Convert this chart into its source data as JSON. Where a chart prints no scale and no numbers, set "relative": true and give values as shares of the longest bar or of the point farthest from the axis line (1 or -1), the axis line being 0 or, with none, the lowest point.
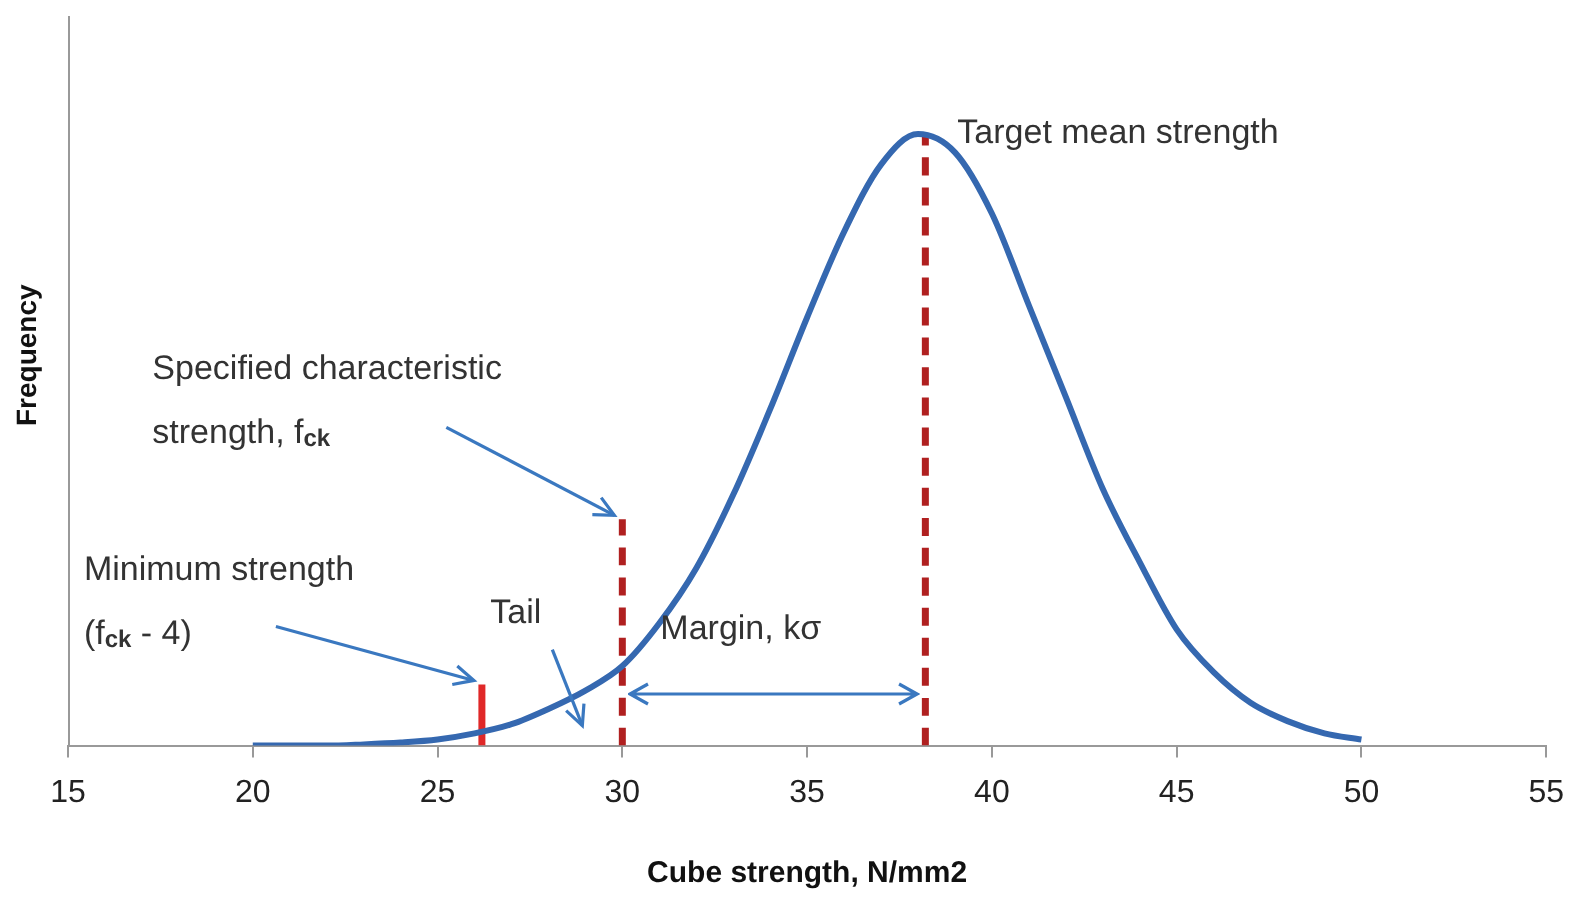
{
  "chart_data": {
    "type": "line",
    "relative": true,
    "xlabel": "Cube strength, N/mm2",
    "ylabel": "Frequency",
    "xlim": [
      15,
      55
    ],
    "xticks": [
      15,
      20,
      25,
      30,
      35,
      40,
      45,
      50,
      55
    ],
    "grid": false,
    "legend": false,
    "marker": "none",
    "series": [
      {
        "color": "#3568b0",
        "line_style": "solid",
        "x": [
          20,
          21,
          22,
          23,
          24,
          25,
          26,
          27,
          28,
          29,
          30,
          31,
          32,
          33,
          34,
          35,
          36,
          37,
          38,
          39,
          40,
          41,
          42,
          43,
          44,
          45,
          46,
          47,
          48,
          49,
          50
        ],
        "values": [
          0,
          0,
          0,
          0.002,
          0.005,
          0.01,
          0.02,
          0.035,
          0.06,
          0.09,
          0.13,
          0.2,
          0.29,
          0.41,
          0.55,
          0.7,
          0.84,
          0.95,
          1,
          0.97,
          0.87,
          0.72,
          0.57,
          0.42,
          0.3,
          0.19,
          0.12,
          0.07,
          0.04,
          0.02,
          0.01
        ]
      },
      {
        "color": "#b02020",
        "line_style": "dashed",
        "x": [
          30,
          30
        ],
        "values": [
          0,
          0.37
        ]
      },
      {
        "color": "#b02020",
        "line_style": "dashed",
        "x": [
          38.2,
          38.2
        ],
        "values": [
          0,
          1
        ]
      },
      {
        "color": "#e02828",
        "line_style": "solid",
        "x": [
          26.2,
          26.2
        ],
        "values": [
          0,
          0.1
        ]
      }
    ],
    "annotations": [
      {
        "text": "Target mean strength",
        "x": 38.2,
        "y": 1
      },
      {
        "text": "Specified characteristic\nstrength, f$_{ck}$",
        "x": 30,
        "y": 0.37
      },
      {
        "text": "Minimum strength\n(f$_{ck}$ - 4)",
        "x": 26.2,
        "y": 0.1
      },
      "Tail",
      "Margin, kσ"
    ]
  }
}
